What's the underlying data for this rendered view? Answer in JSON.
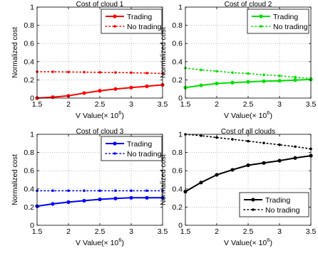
{
  "chart_data": [
    {
      "type": "line",
      "title": "Cost of cloud 1",
      "xlabel": "V Value(× 10",
      "xlabel_exp": "6",
      "xlabel_close": ")",
      "ylabel": "Normalized cost",
      "xlim": [
        1.5,
        3.5
      ],
      "ylim": [
        0,
        1
      ],
      "xticks": [
        "1.5",
        "2",
        "2.5",
        "3",
        "3.5"
      ],
      "yticks": [
        "0",
        "0.2",
        "0.4",
        "0.6",
        "0.8",
        "1"
      ],
      "grid": true,
      "legend_position": "top-right",
      "x": [
        1.5,
        1.75,
        2.0,
        2.25,
        2.5,
        2.75,
        3.0,
        3.25,
        3.5
      ],
      "series": [
        {
          "name": "Trading",
          "color": "#ff0000",
          "style": "solid",
          "values": [
            0.0,
            0.01,
            0.025,
            0.055,
            0.08,
            0.1,
            0.115,
            0.13,
            0.145
          ]
        },
        {
          "name": "No trading",
          "color": "#ff0000",
          "style": "dotted",
          "values": [
            0.29,
            0.289,
            0.287,
            0.285,
            0.283,
            0.281,
            0.279,
            0.275,
            0.27
          ]
        }
      ]
    },
    {
      "type": "line",
      "title": "Cost of cloud 2",
      "xlabel": "V Value(× 10",
      "xlabel_exp": "6",
      "xlabel_close": ")",
      "ylabel": "Normalized cost",
      "xlim": [
        1.5,
        3.5
      ],
      "ylim": [
        0,
        1
      ],
      "xticks": [
        "1.5",
        "2",
        "2.5",
        "3",
        "3.5"
      ],
      "yticks": [
        "0",
        "0.2",
        "0.4",
        "0.6",
        "0.8",
        "1"
      ],
      "grid": true,
      "legend_position": "top-right",
      "x": [
        1.5,
        1.75,
        2.0,
        2.25,
        2.5,
        2.75,
        3.0,
        3.25,
        3.5
      ],
      "series": [
        {
          "name": "Trading",
          "color": "#00e000",
          "style": "solid",
          "values": [
            0.115,
            0.14,
            0.16,
            0.17,
            0.178,
            0.185,
            0.19,
            0.198,
            0.205
          ]
        },
        {
          "name": "No trading",
          "color": "#00e000",
          "style": "dotted",
          "values": [
            0.33,
            0.31,
            0.295,
            0.28,
            0.27,
            0.255,
            0.245,
            0.23,
            0.215
          ]
        }
      ]
    },
    {
      "type": "line",
      "title": "Cost of cloud 3",
      "xlabel": "V Value(× 10",
      "xlabel_exp": "6",
      "xlabel_close": ")",
      "ylabel": "Normalized cost",
      "xlim": [
        1.5,
        3.5
      ],
      "ylim": [
        0,
        1
      ],
      "xticks": [
        "1.5",
        "2",
        "2.5",
        "3",
        "3.5"
      ],
      "yticks": [
        "0",
        "0.2",
        "0.4",
        "0.6",
        "0.8",
        "1"
      ],
      "grid": true,
      "legend_position": "top-right",
      "x": [
        1.5,
        1.75,
        2.0,
        2.25,
        2.5,
        2.75,
        3.0,
        3.25,
        3.5
      ],
      "series": [
        {
          "name": "Trading",
          "color": "#0000ff",
          "style": "solid",
          "values": [
            0.21,
            0.235,
            0.255,
            0.27,
            0.285,
            0.295,
            0.302,
            0.302,
            0.302
          ]
        },
        {
          "name": "No trading",
          "color": "#0000ff",
          "style": "dotted",
          "values": [
            0.38,
            0.38,
            0.38,
            0.38,
            0.38,
            0.38,
            0.38,
            0.38,
            0.38
          ]
        }
      ]
    },
    {
      "type": "line",
      "title": "Cost of all clouds",
      "xlabel": "V Value(× 10",
      "xlabel_exp": "6",
      "xlabel_close": ")",
      "ylabel": "Normalized cost",
      "xlim": [
        1.5,
        3.5
      ],
      "ylim": [
        0,
        1
      ],
      "xticks": [
        "1.5",
        "2",
        "2.5",
        "3",
        "3.5"
      ],
      "yticks": [
        "0",
        "0.2",
        "0.4",
        "0.6",
        "0.8",
        "1"
      ],
      "grid": true,
      "legend_position": "bottom-right",
      "x": [
        1.5,
        1.75,
        2.0,
        2.25,
        2.5,
        2.75,
        3.0,
        3.25,
        3.5
      ],
      "series": [
        {
          "name": "Trading",
          "color": "#000000",
          "style": "solid",
          "values": [
            0.37,
            0.47,
            0.555,
            0.61,
            0.66,
            0.685,
            0.71,
            0.74,
            0.765
          ]
        },
        {
          "name": "No trading",
          "color": "#000000",
          "style": "dotted",
          "values": [
            1.0,
            0.985,
            0.965,
            0.945,
            0.925,
            0.905,
            0.885,
            0.865,
            0.84
          ]
        }
      ]
    }
  ]
}
